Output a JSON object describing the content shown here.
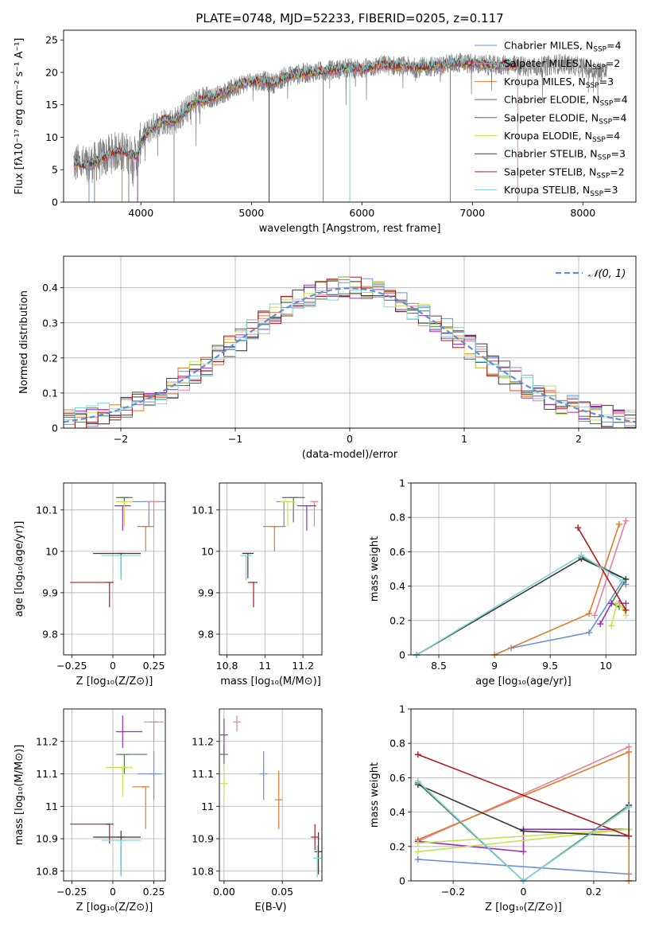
{
  "figure_title": "PLATE=0748, MJD=52233, FIBERID=0205, z=0.117",
  "colors": {
    "chabrier_miles": "#6a8fd8",
    "salpeter_miles": "#e8809a",
    "kroupa_miles": "#e07b2a",
    "chabrier_elodie": "#4f7a4f",
    "salpeter_elodie": "#9b30b8",
    "kroupa_elodie": "#c8e050",
    "chabrier_stelib": "#3a3a3a",
    "salpeter_stelib": "#b01c1c",
    "kroupa_stelib": "#7dd3dc",
    "gaussian": "#5b8fd8",
    "grid": "#b0b0b0",
    "data": "#808080"
  },
  "chart_data": [
    {
      "id": "spectrum",
      "type": "line",
      "title": "",
      "xlabel": "wavelength [Angstrom, rest frame]",
      "ylabel": "Flux [fλ10⁻¹⁷ erg cm⁻² s⁻¹ A⁻¹]",
      "xlim": [
        3300,
        8480
      ],
      "ylim": [
        0,
        26.5
      ],
      "xticks": [
        4000,
        5000,
        6000,
        7000,
        8000
      ],
      "yticks": [
        0,
        5,
        10,
        15,
        20,
        25
      ],
      "grid": false,
      "legend_position": "right",
      "legend": [
        "Chabrier MILES, N_SSP=4",
        "Salpeter MILES, N_SSP=2",
        "Kroupa MILES, N_SSP=3",
        "Chabrier ELODIE, N_SSP=4",
        "Salpeter ELODIE, N_SSP=4",
        "Kroupa ELODIE, N_SSP=4",
        "Chabrier STELIB, N_SSP=3",
        "Salpeter STELIB, N_SSP=2",
        "Kroupa STELIB, N_SSP=3"
      ],
      "legend_keys": [
        "chabrier_miles",
        "salpeter_miles",
        "kroupa_miles",
        "chabrier_elodie",
        "salpeter_elodie",
        "kroupa_elodie",
        "chabrier_stelib",
        "salpeter_stelib",
        "kroupa_stelib"
      ],
      "continuum": [
        [
          3390,
          6.0
        ],
        [
          3500,
          5.7
        ],
        [
          3600,
          6.3
        ],
        [
          3700,
          7.2
        ],
        [
          3800,
          8.0
        ],
        [
          3900,
          7.4
        ],
        [
          3970,
          7.0
        ],
        [
          4000,
          9.5
        ],
        [
          4100,
          11.5
        ],
        [
          4200,
          12.6
        ],
        [
          4300,
          12.4
        ],
        [
          4400,
          14.0
        ],
        [
          4500,
          15.5
        ],
        [
          4600,
          15.8
        ],
        [
          4700,
          16.5
        ],
        [
          4800,
          17.2
        ],
        [
          4900,
          18.2
        ],
        [
          5000,
          18.6
        ],
        [
          5100,
          18.7
        ],
        [
          5200,
          18.3
        ],
        [
          5300,
          19.3
        ],
        [
          5400,
          19.7
        ],
        [
          5500,
          19.9
        ],
        [
          5600,
          20.1
        ],
        [
          5700,
          20.3
        ],
        [
          5800,
          20.5
        ],
        [
          5900,
          20.7
        ],
        [
          6000,
          20.5
        ],
        [
          6100,
          20.8
        ],
        [
          6200,
          21.2
        ],
        [
          6300,
          21.0
        ],
        [
          6400,
          20.9
        ],
        [
          6500,
          20.7
        ],
        [
          6600,
          20.9
        ],
        [
          6700,
          21.0
        ],
        [
          6800,
          21.4
        ],
        [
          6900,
          21.5
        ],
        [
          7000,
          21.3
        ],
        [
          7100,
          21.2
        ],
        [
          7200,
          21.0
        ],
        [
          7300,
          21.2
        ],
        [
          7400,
          21.0
        ]
      ],
      "data_extent": [
        3390,
        8220
      ],
      "data_tail": [
        [
          7400,
          21.5
        ],
        [
          7600,
          20.8
        ],
        [
          7800,
          21.4
        ],
        [
          8000,
          20.8
        ],
        [
          8220,
          20.0
        ]
      ],
      "absorption_dips": [
        3530,
        3580,
        3830,
        3890,
        3970,
        4300,
        5160,
        5650,
        5890,
        6800,
        7410
      ]
    },
    {
      "id": "residuals",
      "type": "histogram",
      "title": "",
      "xlabel": "(data-model)/error",
      "ylabel": "Normed distribution",
      "xlim": [
        -2.5,
        2.5
      ],
      "ylim": [
        0,
        0.49
      ],
      "xticks": [
        -2,
        -1,
        0,
        1,
        2
      ],
      "yticks": [
        0.0,
        0.1,
        0.2,
        0.3,
        0.4
      ],
      "grid": true,
      "legend": [
        "𝒩(0, 1)"
      ],
      "legend_position": "top-right",
      "bin_width": 0.1,
      "bins_start": -2.5,
      "gaussian": {
        "mu": 0,
        "sigma": 1
      }
    },
    {
      "id": "age_vs_Z",
      "type": "errorbar",
      "xlabel": "Z [log₁₀(Z/Z⊙)]",
      "ylabel": "age  [log₁₀(age/yr)]",
      "xlim": [
        -0.3,
        0.32
      ],
      "ylim": [
        9.75,
        10.165
      ],
      "xticks": [
        -0.25,
        0.0,
        0.25
      ],
      "yticks": [
        9.8,
        9.9,
        10.0,
        10.1
      ],
      "grid": true,
      "points": [
        {
          "m": "chabrier_miles",
          "x": 0.22,
          "xerr": [
            0.1,
            0.1
          ],
          "y": 10.12,
          "yerr": [
            0.0,
            0.0
          ]
        },
        {
          "m": "salpeter_miles",
          "x": 0.25,
          "xerr": [
            0.05,
            0.05
          ],
          "y": 10.12,
          "yerr": [
            0.0,
            0.0
          ]
        },
        {
          "m": "kroupa_miles",
          "x": 0.2,
          "xerr": [
            0.05,
            0.05
          ],
          "y": 10.06,
          "yerr": [
            0.0,
            0.0
          ]
        },
        {
          "m": "chabrier_elodie",
          "x": 0.07,
          "xerr": [
            0.05,
            0.05
          ],
          "y": 10.13,
          "yerr": [
            0.0,
            0.0
          ]
        },
        {
          "m": "salpeter_elodie",
          "x": 0.06,
          "xerr": [
            0.05,
            0.05
          ],
          "y": 10.11,
          "yerr": [
            0.0,
            0.0
          ]
        },
        {
          "m": "kroupa_elodie",
          "x": 0.07,
          "xerr": [
            0.05,
            0.05
          ],
          "y": 10.12,
          "yerr": [
            0.0,
            0.0
          ]
        },
        {
          "m": "chabrier_stelib",
          "x": 0.05,
          "xerr": [
            0.17,
            0.12
          ],
          "y": 9.995,
          "yerr": [
            0.0,
            0.0
          ]
        },
        {
          "m": "salpeter_stelib",
          "x": -0.02,
          "xerr": [
            0.24,
            0.0
          ],
          "y": 9.925,
          "yerr": [
            0.0,
            0.0
          ]
        },
        {
          "m": "kroupa_stelib",
          "x": 0.05,
          "xerr": [
            0.12,
            0.12
          ],
          "y": 9.99,
          "yerr": [
            0.0,
            0.0
          ]
        }
      ]
    },
    {
      "id": "age_vs_mass",
      "type": "errorbar",
      "xlabel": "mass [log₁₀(M/M⊙)]",
      "ylabel": "",
      "xlim": [
        10.76,
        11.3
      ],
      "ylim": [
        9.75,
        10.165
      ],
      "xticks": [
        10.8,
        11.0,
        11.2
      ],
      "yticks": [
        9.8,
        9.9,
        10.0,
        10.1
      ],
      "grid": true,
      "points": [
        {
          "m": "chabrier_miles",
          "x": 11.1,
          "xerr": [
            0.04,
            0.04
          ],
          "y": 10.12,
          "yerr": [
            0.0,
            0.0
          ]
        },
        {
          "m": "salpeter_miles",
          "x": 11.26,
          "xerr": [
            0.02,
            0.02
          ],
          "y": 10.12,
          "yerr": [
            0.0,
            0.0
          ]
        },
        {
          "m": "kroupa_miles",
          "x": 11.05,
          "xerr": [
            0.06,
            0.06
          ],
          "y": 10.06,
          "yerr": [
            0.0,
            0.0
          ]
        },
        {
          "m": "chabrier_elodie",
          "x": 11.15,
          "xerr": [
            0.06,
            0.06
          ],
          "y": 10.13,
          "yerr": [
            0.0,
            0.0
          ]
        },
        {
          "m": "salpeter_elodie",
          "x": 11.22,
          "xerr": [
            0.05,
            0.05
          ],
          "y": 10.11,
          "yerr": [
            0.0,
            0.0
          ]
        },
        {
          "m": "kroupa_elodie",
          "x": 11.12,
          "xerr": [
            0.04,
            0.04
          ],
          "y": 10.12,
          "yerr": [
            0.0,
            0.0
          ]
        },
        {
          "m": "chabrier_stelib",
          "x": 10.91,
          "xerr": [
            0.03,
            0.03
          ],
          "y": 9.995,
          "yerr": [
            0.0,
            0.0
          ]
        },
        {
          "m": "salpeter_stelib",
          "x": 10.94,
          "xerr": [
            0.03,
            0.0
          ],
          "y": 9.925,
          "yerr": [
            0.0,
            0.0
          ]
        },
        {
          "m": "kroupa_stelib",
          "x": 10.9,
          "xerr": [
            0.03,
            0.03
          ],
          "y": 9.99,
          "yerr": [
            0.0,
            0.0
          ]
        }
      ]
    },
    {
      "id": "weight_vs_age",
      "type": "line",
      "xlabel": "age  [log₁₀(age/yr)]",
      "ylabel": "mass weight",
      "xlim": [
        8.25,
        10.27
      ],
      "ylim": [
        0.0,
        1.0
      ],
      "xticks": [
        8.5,
        9.0,
        9.5,
        10.0
      ],
      "yticks": [
        0.0,
        0.2,
        0.4,
        0.6,
        0.8,
        1.0
      ],
      "grid": true,
      "series": [
        {
          "m": "chabrier_miles",
          "x": [
            9.15,
            9.85,
            10.15,
            10.18
          ],
          "y": [
            0.04,
            0.13,
            0.43,
            0.41
          ]
        },
        {
          "m": "salpeter_miles",
          "x": [
            9.9,
            10.18
          ],
          "y": [
            0.23,
            0.78
          ]
        },
        {
          "m": "kroupa_miles",
          "x": [
            9.0,
            9.85,
            10.12
          ],
          "y": [
            0.0,
            0.24,
            0.76
          ]
        },
        {
          "m": "chabrier_elodie",
          "x": [
            9.78,
            10.18,
            10.05,
            10.12
          ],
          "y": [
            0.57,
            0.44,
            0.3,
            0.28
          ]
        },
        {
          "m": "salpeter_elodie",
          "x": [
            9.95,
            10.05,
            10.12,
            10.18
          ],
          "y": [
            0.18,
            0.3,
            0.3,
            0.3
          ]
        },
        {
          "m": "kroupa_elodie",
          "x": [
            10.05,
            10.1,
            10.15,
            10.18
          ],
          "y": [
            0.17,
            0.3,
            0.28,
            0.23
          ]
        },
        {
          "m": "chabrier_stelib",
          "x": [
            8.3,
            9.78,
            10.18
          ],
          "y": [
            0.0,
            0.56,
            0.44
          ]
        },
        {
          "m": "salpeter_stelib",
          "x": [
            9.75,
            10.18
          ],
          "y": [
            0.74,
            0.26
          ]
        },
        {
          "m": "kroupa_stelib",
          "x": [
            8.3,
            9.78,
            10.15
          ],
          "y": [
            0.0,
            0.58,
            0.43
          ]
        }
      ]
    },
    {
      "id": "mass_vs_Z",
      "type": "errorbar",
      "xlabel": "Z [log₁₀(Z/Z⊙)]",
      "ylabel": "mass [log₁₀(M/M⊙)]",
      "xlim": [
        -0.3,
        0.32
      ],
      "ylim": [
        10.77,
        11.3
      ],
      "xticks": [
        -0.25,
        0.0,
        0.25
      ],
      "yticks": [
        10.8,
        10.9,
        11.0,
        11.1,
        11.2
      ],
      "grid": true,
      "points": [
        {
          "m": "chabrier_miles",
          "x": 0.25,
          "xerr": [
            0.1,
            0.05
          ],
          "y": 11.1,
          "yerr": [
            0.08,
            0.07
          ]
        },
        {
          "m": "salpeter_miles",
          "x": 0.25,
          "xerr": [
            0.06,
            0.06
          ],
          "y": 11.26,
          "yerr": [
            0.0,
            0.0
          ]
        },
        {
          "m": "kroupa_miles",
          "x": 0.2,
          "xerr": [
            0.08,
            0.0
          ],
          "y": 11.06,
          "yerr": [
            0.13,
            0.0
          ]
        },
        {
          "m": "chabrier_elodie",
          "x": 0.07,
          "xerr": [
            0.05,
            0.14
          ],
          "y": 11.16,
          "yerr": [
            0.0,
            0.0
          ]
        },
        {
          "m": "salpeter_elodie",
          "x": 0.06,
          "xerr": [
            0.04,
            0.12
          ],
          "y": 11.23,
          "yerr": [
            0.05,
            0.05
          ]
        },
        {
          "m": "kroupa_elodie",
          "x": 0.06,
          "xerr": [
            0.1,
            0.06
          ],
          "y": 11.12,
          "yerr": [
            0.09,
            0.0
          ]
        },
        {
          "m": "chabrier_stelib",
          "x": 0.05,
          "xerr": [
            0.17,
            0.12
          ],
          "y": 10.905,
          "yerr": [
            0.12,
            0.02
          ]
        },
        {
          "m": "salpeter_stelib",
          "x": -0.02,
          "xerr": [
            0.24,
            0.0
          ],
          "y": 10.945,
          "yerr": [
            0.06,
            0.0
          ]
        },
        {
          "m": "kroupa_stelib",
          "x": 0.05,
          "xerr": [
            0.12,
            0.12
          ],
          "y": 10.895,
          "yerr": [
            0.11,
            0.0
          ]
        }
      ]
    },
    {
      "id": "mass_vs_ebv",
      "type": "errorbar",
      "xlabel": "E(B-V)",
      "ylabel": "",
      "xlim": [
        -0.004,
        0.084
      ],
      "ylim": [
        10.77,
        11.3
      ],
      "xticks": [
        0.0,
        0.05
      ],
      "xtick_labels": [
        "0.00",
        "0.05"
      ],
      "yticks": [
        10.8,
        10.9,
        11.0,
        11.1,
        11.2
      ],
      "grid": true,
      "points": [
        {
          "m": "chabrier_miles",
          "x": 0.034,
          "xerr": [
            0,
            0
          ],
          "y": 11.1,
          "yerr": [
            0.08,
            0.07
          ]
        },
        {
          "m": "salpeter_miles",
          "x": 0.011,
          "xerr": [
            0,
            0
          ],
          "y": 11.26,
          "yerr": [
            0.03,
            0.02
          ]
        },
        {
          "m": "kroupa_miles",
          "x": 0.047,
          "xerr": [
            0,
            0
          ],
          "y": 11.02,
          "yerr": [
            0.09,
            0.09
          ]
        },
        {
          "m": "chabrier_elodie",
          "x": 0.0,
          "xerr": [
            0,
            0
          ],
          "y": 11.16,
          "yerr": [
            0.03,
            0.03
          ]
        },
        {
          "m": "salpeter_elodie",
          "x": 0.0,
          "xerr": [
            0,
            0
          ],
          "y": 11.22,
          "yerr": [
            0.06,
            0.05
          ]
        },
        {
          "m": "kroupa_elodie",
          "x": 0.0,
          "xerr": [
            0,
            0
          ],
          "y": 11.07,
          "yerr": [
            0.05,
            0.05
          ]
        },
        {
          "m": "chabrier_stelib",
          "x": 0.081,
          "xerr": [
            0,
            0
          ],
          "y": 10.86,
          "yerr": [
            0.07,
            0.06
          ]
        },
        {
          "m": "salpeter_stelib",
          "x": 0.078,
          "xerr": [
            0,
            0
          ],
          "y": 10.905,
          "yerr": [
            0.04,
            0.04
          ]
        },
        {
          "m": "kroupa_stelib",
          "x": 0.08,
          "xerr": [
            0,
            0
          ],
          "y": 10.84,
          "yerr": [
            0.06,
            0.04
          ]
        }
      ]
    },
    {
      "id": "weight_vs_Z",
      "type": "line",
      "xlabel": "Z [log₁₀(Z/Z⊙)]",
      "ylabel": "mass weight",
      "xlim": [
        -0.32,
        0.32
      ],
      "ylim": [
        0.0,
        1.0
      ],
      "xticks": [
        -0.2,
        0.0,
        0.2
      ],
      "yticks": [
        0.0,
        0.2,
        0.4,
        0.6,
        0.8,
        1.0
      ],
      "grid": true,
      "series": [
        {
          "m": "chabrier_miles",
          "x": [
            -0.3,
            0.3
          ],
          "y": [
            0.125,
            0.04
          ]
        },
        {
          "m": "salpeter_miles",
          "x": [
            -0.3,
            0.3
          ],
          "y": [
            0.23,
            0.78
          ]
        },
        {
          "m": "kroupa_miles",
          "x": [
            -0.3,
            0.3,
            0.3
          ],
          "y": [
            0.24,
            0.75,
            0.0
          ]
        },
        {
          "m": "chabrier_elodie",
          "x": [
            -0.3,
            0.0,
            0.3
          ],
          "y": [
            0.57,
            0.0,
            0.44
          ]
        },
        {
          "m": "salpeter_elodie",
          "x": [
            -0.3,
            0.0,
            0.0,
            0.3
          ],
          "y": [
            0.23,
            0.17,
            0.3,
            0.3
          ]
        },
        {
          "m": "kroupa_elodie",
          "x": [
            -0.3,
            0.3,
            -0.3
          ],
          "y": [
            0.22,
            0.3,
            0.17
          ]
        },
        {
          "m": "chabrier_stelib",
          "x": [
            -0.3,
            0.0,
            0.3,
            0.3
          ],
          "y": [
            0.56,
            0.29,
            0.26,
            0.44
          ]
        },
        {
          "m": "salpeter_stelib",
          "x": [
            -0.3,
            0.3
          ],
          "y": [
            0.735,
            0.26
          ]
        },
        {
          "m": "kroupa_stelib",
          "x": [
            -0.3,
            0.0,
            0.3
          ],
          "y": [
            0.58,
            0.0,
            0.43
          ]
        }
      ]
    }
  ]
}
